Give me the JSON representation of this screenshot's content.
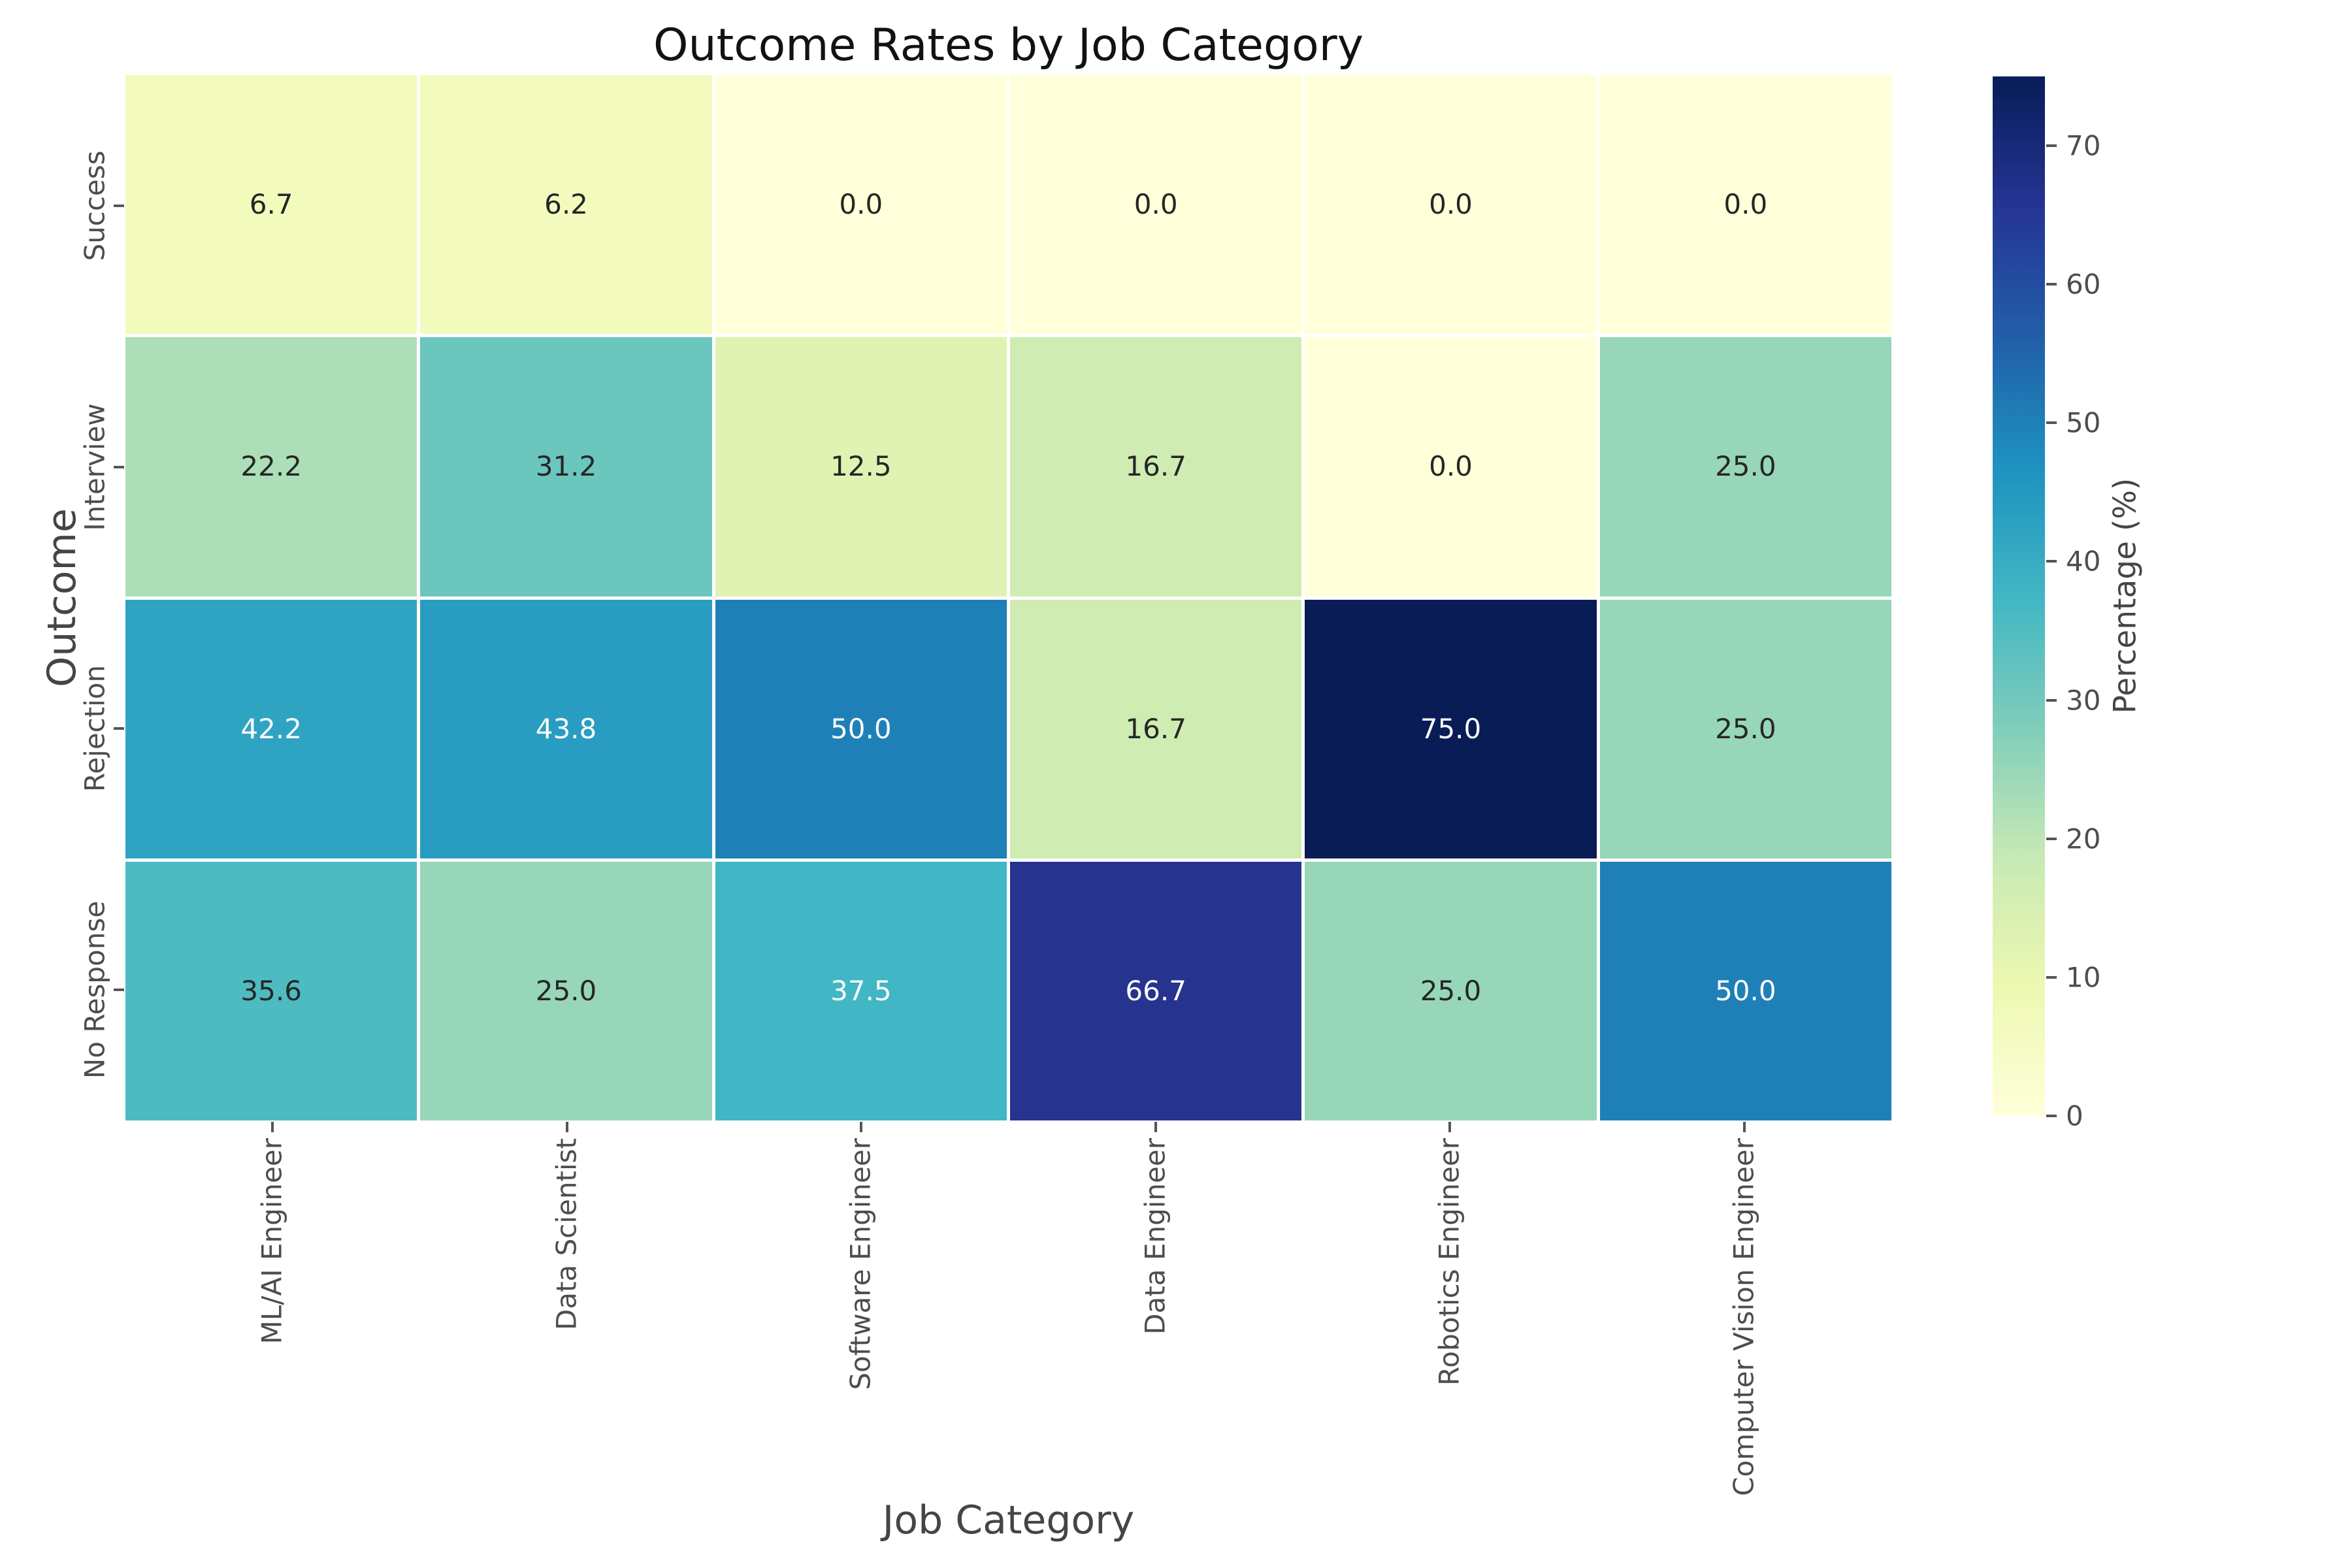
{
  "figure": {
    "title": "Outcome Rates by Job Category",
    "x_axis_label": "Job Category",
    "y_axis_label": "Outcome",
    "colorbar_label": "Percentage (%)"
  },
  "chart_data": {
    "type": "heatmap",
    "title": "Outcome Rates by Job Category",
    "xlabel": "Job Category",
    "ylabel": "Outcome",
    "x_categories": [
      "ML/AI Engineer",
      "Data Scientist",
      "Software Engineer",
      "Data Engineer",
      "Robotics Engineer",
      "Computer Vision Engineer"
    ],
    "y_categories": [
      "Success",
      "Interview",
      "Rejection",
      "No Response"
    ],
    "values": [
      [
        6.7,
        6.2,
        0.0,
        0.0,
        0.0,
        0.0
      ],
      [
        22.2,
        31.2,
        12.5,
        16.7,
        0.0,
        25.0
      ],
      [
        42.2,
        43.8,
        50.0,
        16.7,
        75.0,
        25.0
      ],
      [
        35.6,
        25.0,
        37.5,
        66.7,
        25.0,
        50.0
      ]
    ],
    "value_labels": [
      [
        "6.7",
        "6.2",
        "0.0",
        "0.0",
        "0.0",
        "0.0"
      ],
      [
        "22.2",
        "31.2",
        "12.5",
        "16.7",
        "0.0",
        "25.0"
      ],
      [
        "42.2",
        "43.8",
        "50.0",
        "16.7",
        "75.0",
        "25.0"
      ],
      [
        "35.6",
        "25.0",
        "37.5",
        "66.7",
        "25.0",
        "50.0"
      ]
    ],
    "cell_colors": [
      [
        "#f2fabc",
        "#f3fabe",
        "#ffffd9",
        "#ffffd9",
        "#ffffd9",
        "#ffffd9"
      ],
      [
        "#acdfb7",
        "#6bc6be",
        "#e0f3b2",
        "#cfecb3",
        "#ffffd9",
        "#97d6b9"
      ],
      [
        "#2fa4c2",
        "#299dc1",
        "#1f80b8",
        "#cfecb3",
        "#0a1c56",
        "#97d6b9"
      ],
      [
        "#4ebbc2",
        "#97d6b9",
        "#41b6c4",
        "#26338f",
        "#97d6b9",
        "#1f80b8"
      ]
    ],
    "cell_text_tones": [
      [
        "dark",
        "dark",
        "dark",
        "dark",
        "dark",
        "dark"
      ],
      [
        "dark",
        "dark",
        "dark",
        "dark",
        "dark",
        "dark"
      ],
      [
        "light",
        "light",
        "light",
        "dark",
        "light",
        "dark"
      ],
      [
        "dark",
        "dark",
        "light",
        "light",
        "dark",
        "light"
      ]
    ],
    "annotation_text_colors": {
      "dark": "#262626",
      "light": "#fcfcfc"
    },
    "colormap": "YlGnBu",
    "vmin": 0,
    "vmax": 75,
    "colorbar_ticks": [
      0,
      10,
      20,
      30,
      40,
      50,
      60,
      70
    ],
    "colorbar_gradient_bottom_to_top": [
      "#ffffd9",
      "#edf8b1",
      "#c7e9b4",
      "#7fcdbb",
      "#41b6c4",
      "#1d91c0",
      "#225ea8",
      "#253494",
      "#081d58"
    ],
    "grid": false,
    "legend_position": "right-colorbar"
  }
}
